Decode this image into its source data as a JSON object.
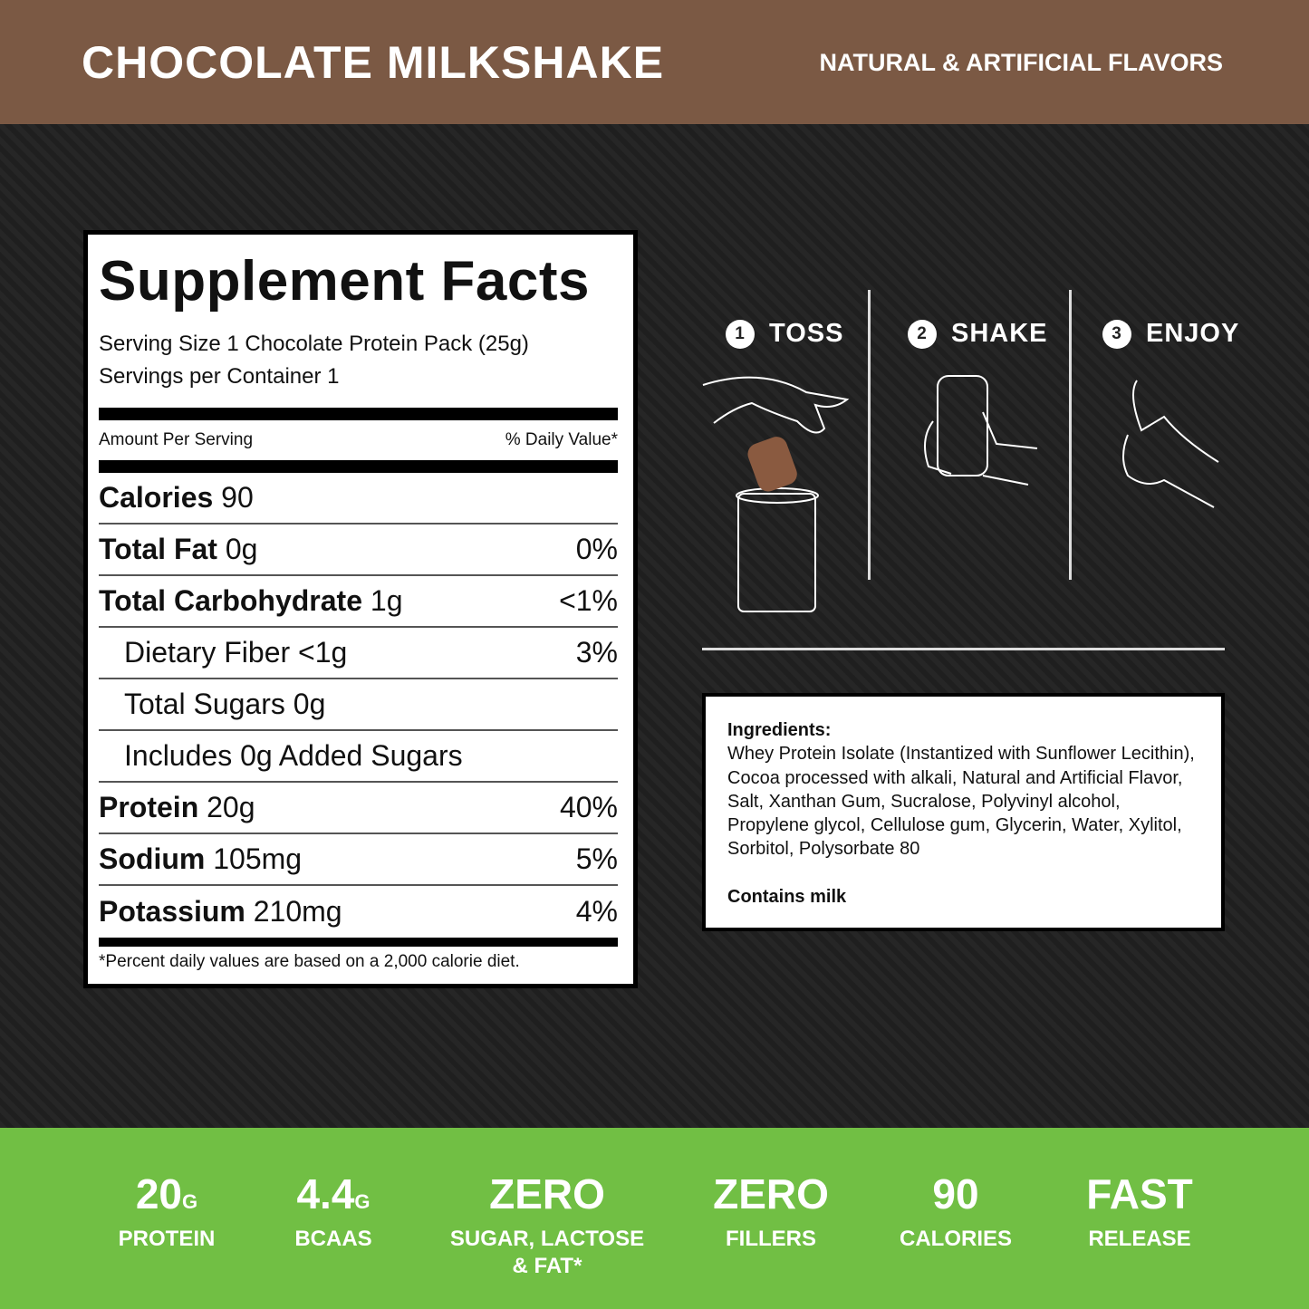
{
  "header": {
    "title": "CHOCOLATE MILKSHAKE",
    "flavor": "NATURAL & ARTIFICIAL FLAVORS"
  },
  "facts": {
    "title": "Supplement Facts",
    "serving_size": "Serving Size 1 Chocolate Protein Pack (25g)",
    "servings": "Servings per Container 1",
    "amount_label": "Amount Per Serving",
    "dv_label": "% Daily Value*",
    "rows": [
      {
        "name": "Calories",
        "amount": "90",
        "dv": ""
      },
      {
        "name": "Total Fat",
        "amount": "0g",
        "dv": "0%"
      },
      {
        "name": "Total Carbohydrate",
        "amount": "1g",
        "dv": "<1%"
      },
      {
        "name": "Dietary Fiber <1g",
        "amount": "",
        "dv": "3%"
      },
      {
        "name": "Total Sugars 0g",
        "amount": "",
        "dv": ""
      },
      {
        "name": "Includes 0g Added Sugars",
        "amount": "",
        "dv": ""
      },
      {
        "name": "Protein",
        "amount": "20g",
        "dv": "40%"
      },
      {
        "name": "Sodium",
        "amount": "105mg",
        "dv": "5%"
      },
      {
        "name": "Potassium",
        "amount": "210mg",
        "dv": "4%"
      }
    ],
    "footnote": "*Percent daily values are based on a 2,000 calorie diet."
  },
  "steps": [
    {
      "num": "1",
      "label": "TOSS"
    },
    {
      "num": "2",
      "label": "SHAKE"
    },
    {
      "num": "3",
      "label": "ENJOY"
    }
  ],
  "ingredients": {
    "heading": "Ingredients:",
    "text": "Whey Protein Isolate (Instantized with Sunflower Lecithin), Cocoa processed with alkali, Natural and Artificial Flavor, Salt, Xanthan Gum, Sucralose, Polyvinyl alcohol, Propylene glycol, Cellulose gum, Glycerin, Water, Xylitol, Sorbitol, Polysorbate 80",
    "contains": "Contains milk"
  },
  "stats": [
    {
      "value": "20",
      "unit": "G",
      "label": "PROTEIN"
    },
    {
      "value": "4.4",
      "unit": "G",
      "label": "BCAAS"
    },
    {
      "value": "ZERO",
      "unit": "",
      "label": "SUGAR, LACTOSE",
      "label2": "& FAT*"
    },
    {
      "value": "ZERO",
      "unit": "",
      "label": "FILLERS"
    },
    {
      "value": "90",
      "unit": "",
      "label": "CALORIES"
    },
    {
      "value": "FAST",
      "unit": "",
      "label": "RELEASE"
    }
  ],
  "colors": {
    "header": "#7b5944",
    "background": "#242424",
    "banner": "#71bf44"
  }
}
